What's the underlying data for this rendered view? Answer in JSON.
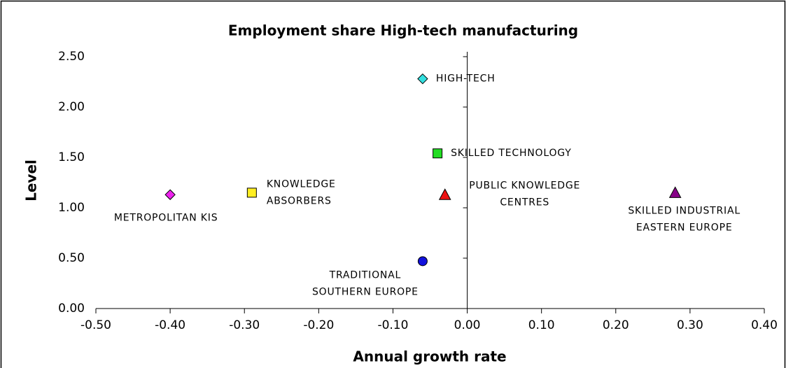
{
  "chart_data": {
    "type": "scatter",
    "title": "Employment share High-tech manufacturing",
    "x_label": "Annual growth rate",
    "y_label": "Level",
    "xlim": [
      -0.5,
      0.4
    ],
    "ylim": [
      0,
      2.5
    ],
    "xticks": [
      {
        "value": -0.5,
        "label": "-0.50"
      },
      {
        "value": -0.4,
        "label": "-0.40"
      },
      {
        "value": -0.3,
        "label": "-0.30"
      },
      {
        "value": -0.2,
        "label": "-0.20"
      },
      {
        "value": -0.1,
        "label": "-0.10"
      },
      {
        "value": 0,
        "label": "0.00"
      },
      {
        "value": 0.1,
        "label": "0.10"
      },
      {
        "value": 0.2,
        "label": "0.20"
      },
      {
        "value": 0.3,
        "label": "0.30"
      },
      {
        "value": 0.4,
        "label": "0.40"
      }
    ],
    "yticks": [
      {
        "value": 0,
        "label": "0.00"
      },
      {
        "value": 0.5,
        "label": "0.50"
      },
      {
        "value": 1,
        "label": "1.00"
      },
      {
        "value": 1.5,
        "label": "1.50"
      },
      {
        "value": 2,
        "label": "2.00"
      },
      {
        "value": 2.5,
        "label": "2.50"
      }
    ],
    "points": [
      {
        "label": [
          "HIGH-TECH"
        ],
        "x": -0.06,
        "y": 2.28,
        "color": "#33e0e0",
        "marker": "diamond"
      },
      {
        "label": [
          "SKILLED TECHNOLOGY"
        ],
        "x": -0.04,
        "y": 1.54,
        "color": "#22dd22",
        "marker": "square"
      },
      {
        "label": [
          "PUBLIC KNOWLEDGE",
          "CENTRES"
        ],
        "x": -0.03,
        "y": 1.13,
        "color": "#ee1111",
        "marker": "triangle"
      },
      {
        "label": [
          "SKILLED INDUSTRIAL",
          "EASTERN EUROPE"
        ],
        "x": 0.28,
        "y": 1.15,
        "color": "#880088",
        "marker": "triangle"
      },
      {
        "label": [
          "METROPOLITAN KIS"
        ],
        "x": -0.4,
        "y": 1.13,
        "color": "#ee22ee",
        "marker": "diamond"
      },
      {
        "label": [
          "KNOWLEDGE",
          "ABSORBERS"
        ],
        "x": -0.29,
        "y": 1.15,
        "color": "#ffee22",
        "marker": "square"
      },
      {
        "label": [
          "TRADITIONAL",
          "SOUTHERN EUROPE"
        ],
        "x": -0.06,
        "y": 0.47,
        "color": "#1111dd",
        "marker": "circle"
      }
    ]
  }
}
